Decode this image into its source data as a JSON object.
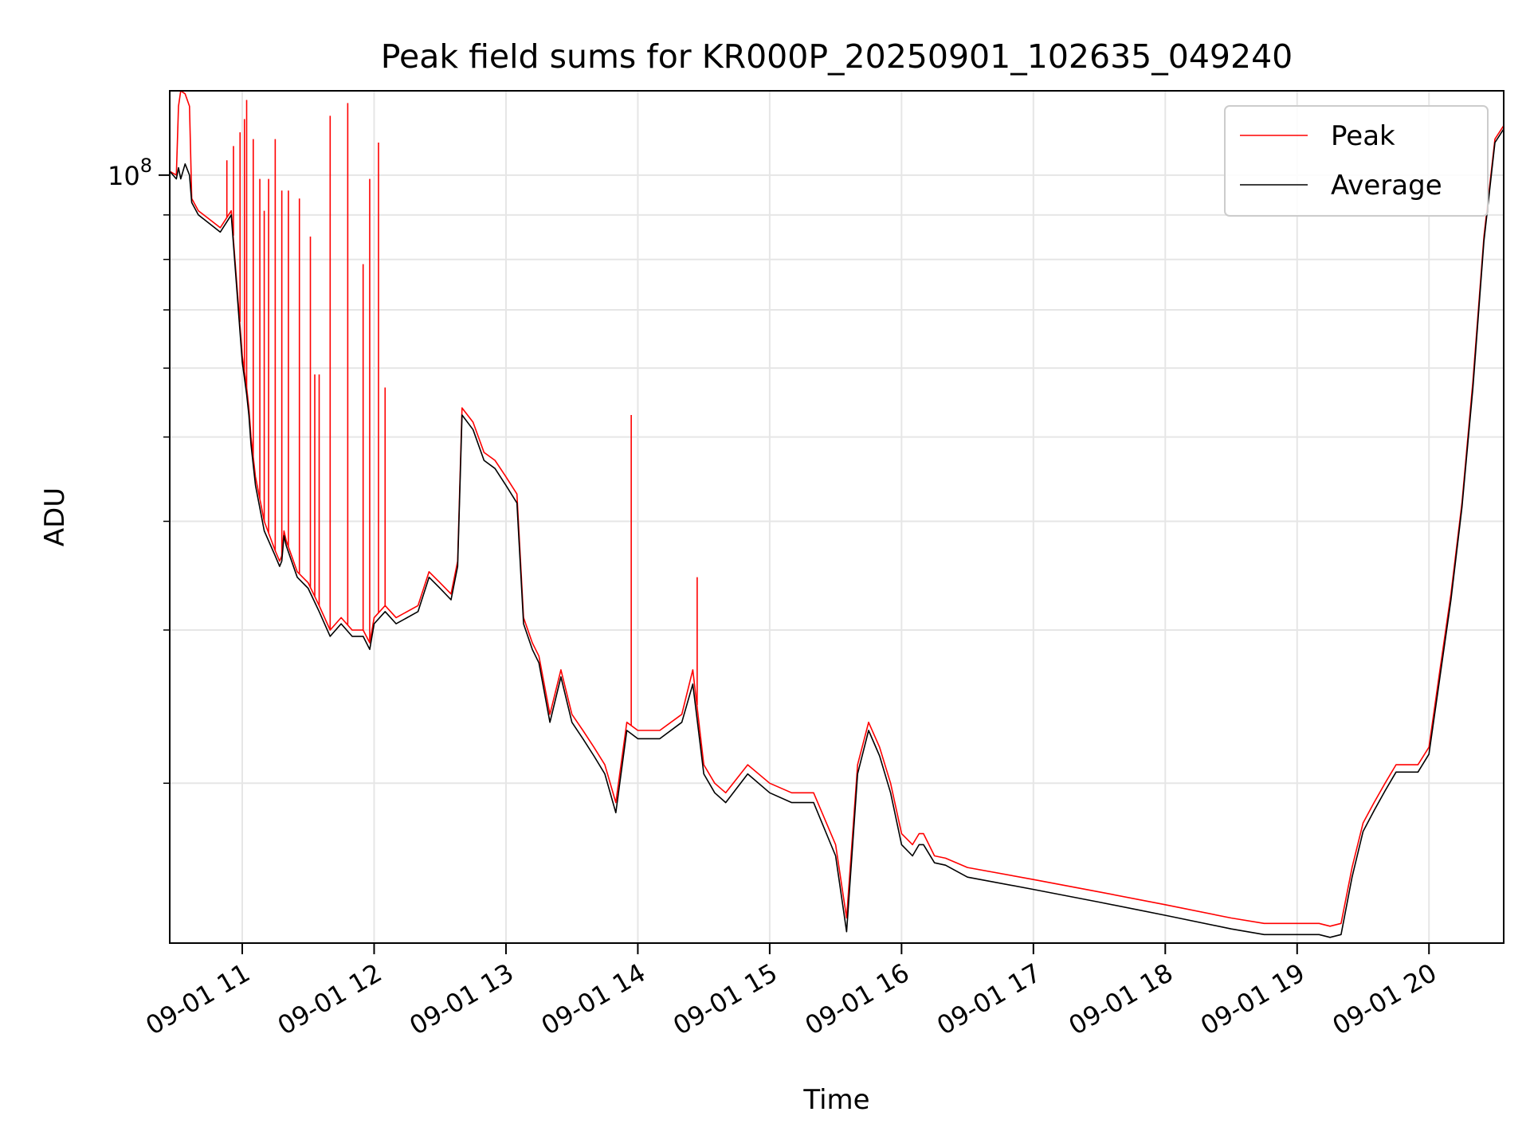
{
  "chart_data": {
    "type": "line",
    "title": "Peak field sums for KR000P_20250901_102635_049240",
    "xlabel": "Time",
    "ylabel": "ADU",
    "yscale": "log",
    "ylim": [
      13100000,
      125000000
    ],
    "xlim": [
      "2025-09-01 10:27",
      "2025-09-01 20:34"
    ],
    "x_ticks": [
      "2025-09-01 11:00",
      "2025-09-01 12:00",
      "2025-09-01 13:00",
      "2025-09-01 14:00",
      "2025-09-01 15:00",
      "2025-09-01 16:00",
      "2025-09-01 17:00",
      "2025-09-01 18:00",
      "2025-09-01 19:00",
      "2025-09-01 20:00"
    ],
    "x_tick_labels": [
      "09-01 11",
      "09-01 12",
      "09-01 13",
      "09-01 14",
      "09-01 15",
      "09-01 16",
      "09-01 17",
      "09-01 18",
      "09-01 19",
      "09-01 20"
    ],
    "y_tick_label": {
      "base": "10",
      "exponent": "8"
    },
    "grid": true,
    "legend_position": "upper right",
    "series": [
      {
        "name": "Peak",
        "color": "#ff0000",
        "x": [
          "2025-09-01 10:27",
          "2025-09-01 10:30",
          "2025-09-01 10:31",
          "2025-09-01 10:32",
          "2025-09-01 10:34",
          "2025-09-01 10:36",
          "2025-09-01 10:37",
          "2025-09-01 10:40",
          "2025-09-01 10:45",
          "2025-09-01 10:50",
          "2025-09-01 10:55",
          "2025-09-01 11:00",
          "2025-09-01 11:02",
          "2025-09-01 11:03",
          "2025-09-01 11:04",
          "2025-09-01 11:06",
          "2025-09-01 11:10",
          "2025-09-01 11:15",
          "2025-09-01 11:17",
          "2025-09-01 11:18",
          "2025-09-01 11:19",
          "2025-09-01 11:20",
          "2025-09-01 11:25",
          "2025-09-01 11:30",
          "2025-09-01 11:35",
          "2025-09-01 11:40",
          "2025-09-01 11:45",
          "2025-09-01 11:50",
          "2025-09-01 11:55",
          "2025-09-01 11:58",
          "2025-09-01 12:00",
          "2025-09-01 12:05",
          "2025-09-01 12:10",
          "2025-09-01 12:20",
          "2025-09-01 12:25",
          "2025-09-01 12:30",
          "2025-09-01 12:35",
          "2025-09-01 12:38",
          "2025-09-01 12:40",
          "2025-09-01 12:45",
          "2025-09-01 12:50",
          "2025-09-01 12:55",
          "2025-09-01 13:00",
          "2025-09-01 13:05",
          "2025-09-01 13:08",
          "2025-09-01 13:12",
          "2025-09-01 13:15",
          "2025-09-01 13:20",
          "2025-09-01 13:25",
          "2025-09-01 13:30",
          "2025-09-01 13:35",
          "2025-09-01 13:40",
          "2025-09-01 13:45",
          "2025-09-01 13:50",
          "2025-09-01 13:55",
          "2025-09-01 14:00",
          "2025-09-01 14:10",
          "2025-09-01 14:20",
          "2025-09-01 14:25",
          "2025-09-01 14:30",
          "2025-09-01 14:35",
          "2025-09-01 14:40",
          "2025-09-01 14:50",
          "2025-09-01 15:00",
          "2025-09-01 15:10",
          "2025-09-01 15:20",
          "2025-09-01 15:30",
          "2025-09-01 15:35",
          "2025-09-01 15:40",
          "2025-09-01 15:45",
          "2025-09-01 15:50",
          "2025-09-01 15:55",
          "2025-09-01 16:00",
          "2025-09-01 16:05",
          "2025-09-01 16:08",
          "2025-09-01 16:10",
          "2025-09-01 16:15",
          "2025-09-01 16:20",
          "2025-09-01 16:30",
          "2025-09-01 17:00",
          "2025-09-01 17:30",
          "2025-09-01 18:00",
          "2025-09-01 18:30",
          "2025-09-01 18:45",
          "2025-09-01 19:00",
          "2025-09-01 19:10",
          "2025-09-01 19:15",
          "2025-09-01 19:20",
          "2025-09-01 19:25",
          "2025-09-01 19:30",
          "2025-09-01 19:35",
          "2025-09-01 19:40",
          "2025-09-01 19:45",
          "2025-09-01 19:50",
          "2025-09-01 19:55",
          "2025-09-01 20:00",
          "2025-09-01 20:05",
          "2025-09-01 20:10",
          "2025-09-01 20:15",
          "2025-09-01 20:20",
          "2025-09-01 20:25",
          "2025-09-01 20:30",
          "2025-09-01 20:34"
        ],
        "values": [
          101000000,
          100000000,
          120000000,
          125000000,
          124000000,
          120000000,
          94000000,
          91000000,
          89000000,
          87000000,
          91000000,
          62000000,
          57000000,
          54000000,
          50000000,
          45000000,
          40000000,
          37000000,
          36000000,
          36500000,
          39000000,
          38000000,
          35000000,
          34000000,
          32000000,
          30000000,
          31000000,
          30000000,
          30000000,
          29000000,
          31000000,
          32000000,
          31000000,
          32000000,
          35000000,
          34000000,
          33000000,
          36000000,
          54000000,
          52000000,
          48000000,
          47000000,
          45000000,
          43000000,
          31000000,
          29000000,
          28000000,
          24000000,
          27000000,
          24000000,
          23000000,
          22000000,
          21000000,
          19000000,
          23500000,
          23000000,
          23000000,
          24000000,
          27000000,
          21000000,
          20000000,
          19500000,
          21000000,
          20000000,
          19500000,
          19500000,
          17000000,
          14000000,
          21000000,
          23500000,
          22000000,
          20000000,
          17500000,
          17000000,
          17500000,
          17500000,
          16500000,
          16400000,
          16000000,
          15500000,
          15000000,
          14500000,
          14000000,
          13800000,
          13800000,
          13800000,
          13700000,
          13800000,
          16000000,
          18000000,
          19000000,
          20000000,
          21000000,
          21000000,
          21000000,
          22000000,
          27000000,
          33000000,
          42000000,
          58000000,
          85000000,
          110000000,
          114000000
        ],
        "spikes": [
          {
            "x": "2025-09-01 10:53",
            "value": 104000000
          },
          {
            "x": "2025-09-01 10:56",
            "value": 108000000
          },
          {
            "x": "2025-09-01 10:59",
            "value": 112000000
          },
          {
            "x": "2025-09-01 11:01",
            "value": 116000000
          },
          {
            "x": "2025-09-01 11:02",
            "value": 122000000
          },
          {
            "x": "2025-09-01 11:05",
            "value": 110000000
          },
          {
            "x": "2025-09-01 11:08",
            "value": 99000000
          },
          {
            "x": "2025-09-01 11:10",
            "value": 91000000
          },
          {
            "x": "2025-09-01 11:12",
            "value": 99000000
          },
          {
            "x": "2025-09-01 11:15",
            "value": 110000000
          },
          {
            "x": "2025-09-01 11:18",
            "value": 96000000
          },
          {
            "x": "2025-09-01 11:21",
            "value": 96000000
          },
          {
            "x": "2025-09-01 11:26",
            "value": 94000000
          },
          {
            "x": "2025-09-01 11:31",
            "value": 85000000
          },
          {
            "x": "2025-09-01 11:33",
            "value": 59000000
          },
          {
            "x": "2025-09-01 11:35",
            "value": 59000000
          },
          {
            "x": "2025-09-01 11:40",
            "value": 117000000
          },
          {
            "x": "2025-09-01 11:48",
            "value": 121000000
          },
          {
            "x": "2025-09-01 11:55",
            "value": 79000000
          },
          {
            "x": "2025-09-01 11:58",
            "value": 99000000
          },
          {
            "x": "2025-09-01 12:02",
            "value": 109000000
          },
          {
            "x": "2025-09-01 12:05",
            "value": 57000000
          },
          {
            "x": "2025-09-01 13:57",
            "value": 53000000
          },
          {
            "x": "2025-09-01 14:27",
            "value": 34500000
          }
        ]
      },
      {
        "name": "Average",
        "color": "#000000",
        "x": [
          "2025-09-01 10:27",
          "2025-09-01 10:30",
          "2025-09-01 10:31",
          "2025-09-01 10:32",
          "2025-09-01 10:34",
          "2025-09-01 10:36",
          "2025-09-01 10:37",
          "2025-09-01 10:40",
          "2025-09-01 10:45",
          "2025-09-01 10:50",
          "2025-09-01 10:55",
          "2025-09-01 11:00",
          "2025-09-01 11:02",
          "2025-09-01 11:03",
          "2025-09-01 11:04",
          "2025-09-01 11:06",
          "2025-09-01 11:10",
          "2025-09-01 11:15",
          "2025-09-01 11:17",
          "2025-09-01 11:18",
          "2025-09-01 11:19",
          "2025-09-01 11:20",
          "2025-09-01 11:25",
          "2025-09-01 11:30",
          "2025-09-01 11:35",
          "2025-09-01 11:40",
          "2025-09-01 11:45",
          "2025-09-01 11:50",
          "2025-09-01 11:55",
          "2025-09-01 11:58",
          "2025-09-01 12:00",
          "2025-09-01 12:05",
          "2025-09-01 12:10",
          "2025-09-01 12:20",
          "2025-09-01 12:25",
          "2025-09-01 12:30",
          "2025-09-01 12:35",
          "2025-09-01 12:38",
          "2025-09-01 12:40",
          "2025-09-01 12:45",
          "2025-09-01 12:50",
          "2025-09-01 12:55",
          "2025-09-01 13:00",
          "2025-09-01 13:05",
          "2025-09-01 13:08",
          "2025-09-01 13:12",
          "2025-09-01 13:15",
          "2025-09-01 13:20",
          "2025-09-01 13:25",
          "2025-09-01 13:30",
          "2025-09-01 13:35",
          "2025-09-01 13:40",
          "2025-09-01 13:45",
          "2025-09-01 13:50",
          "2025-09-01 13:55",
          "2025-09-01 14:00",
          "2025-09-01 14:10",
          "2025-09-01 14:20",
          "2025-09-01 14:25",
          "2025-09-01 14:30",
          "2025-09-01 14:35",
          "2025-09-01 14:40",
          "2025-09-01 14:50",
          "2025-09-01 15:00",
          "2025-09-01 15:10",
          "2025-09-01 15:20",
          "2025-09-01 15:30",
          "2025-09-01 15:35",
          "2025-09-01 15:40",
          "2025-09-01 15:45",
          "2025-09-01 15:50",
          "2025-09-01 15:55",
          "2025-09-01 16:00",
          "2025-09-01 16:05",
          "2025-09-01 16:08",
          "2025-09-01 16:10",
          "2025-09-01 16:15",
          "2025-09-01 16:20",
          "2025-09-01 16:30",
          "2025-09-01 17:00",
          "2025-09-01 17:30",
          "2025-09-01 18:00",
          "2025-09-01 18:30",
          "2025-09-01 18:45",
          "2025-09-01 19:00",
          "2025-09-01 19:10",
          "2025-09-01 19:15",
          "2025-09-01 19:20",
          "2025-09-01 19:25",
          "2025-09-01 19:30",
          "2025-09-01 19:35",
          "2025-09-01 19:40",
          "2025-09-01 19:45",
          "2025-09-01 19:50",
          "2025-09-01 19:55",
          "2025-09-01 20:00",
          "2025-09-01 20:05",
          "2025-09-01 20:10",
          "2025-09-01 20:15",
          "2025-09-01 20:20",
          "2025-09-01 20:25",
          "2025-09-01 20:30",
          "2025-09-01 20:34"
        ],
        "values": [
          101000000,
          99000000,
          102000000,
          99000000,
          103000000,
          100000000,
          93000000,
          90000000,
          88000000,
          86000000,
          90000000,
          61000000,
          56000000,
          53000000,
          49000000,
          44000000,
          39000000,
          36500000,
          35500000,
          36000000,
          38500000,
          37500000,
          34500000,
          33500000,
          31500000,
          29500000,
          30500000,
          29500000,
          29500000,
          28500000,
          30500000,
          31500000,
          30500000,
          31500000,
          34500000,
          33500000,
          32500000,
          35500000,
          53000000,
          51000000,
          47000000,
          46000000,
          44000000,
          42000000,
          30500000,
          28500000,
          27500000,
          23500000,
          26500000,
          23500000,
          22500000,
          21500000,
          20500000,
          18500000,
          23000000,
          22500000,
          22500000,
          23500000,
          26000000,
          20500000,
          19500000,
          19000000,
          20500000,
          19500000,
          19000000,
          19000000,
          16500000,
          13500000,
          20500000,
          23000000,
          21500000,
          19500000,
          17000000,
          16500000,
          17000000,
          17000000,
          16200000,
          16100000,
          15600000,
          15100000,
          14600000,
          14100000,
          13600000,
          13400000,
          13400000,
          13400000,
          13300000,
          13400000,
          15600000,
          17600000,
          18600000,
          19600000,
          20600000,
          20600000,
          20600000,
          21600000,
          26500000,
          32500000,
          41500000,
          57000000,
          84000000,
          109000000,
          113000000
        ]
      }
    ]
  }
}
